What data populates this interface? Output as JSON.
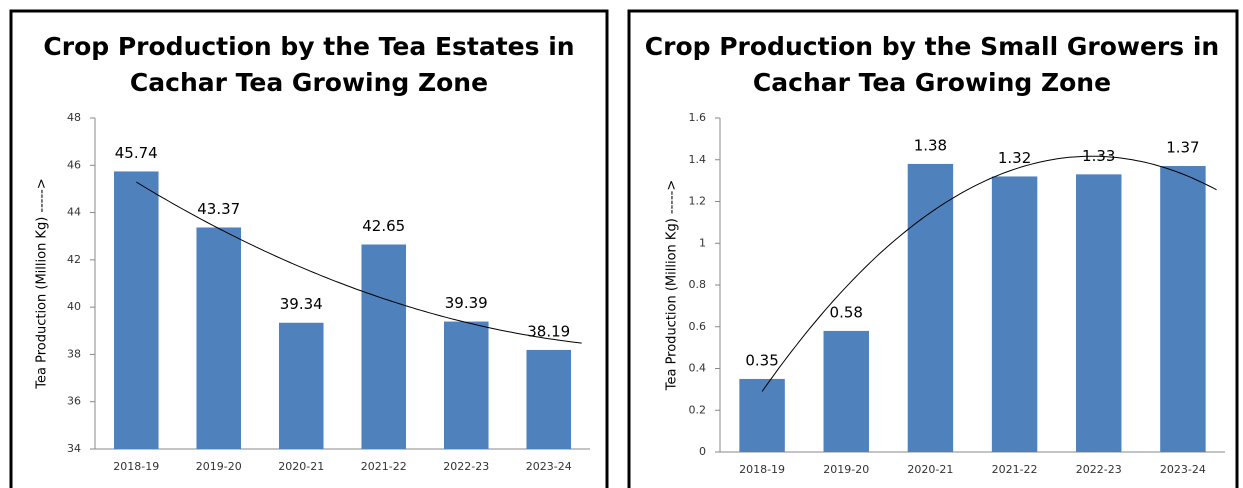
{
  "chart_data": [
    {
      "type": "bar",
      "title": [
        "Crop Production by the Tea Estates in",
        "Cachar Tea Growing Zone"
      ],
      "y_label": "Tea Production (Million Kg) ----->",
      "categories": [
        "2018-19",
        "2019-20",
        "2020-21",
        "2021-22",
        "2022-23",
        "2023-24"
      ],
      "values": [
        45.74,
        43.37,
        39.34,
        42.65,
        39.39,
        38.19
      ],
      "color": "#4f81bd",
      "ylim": [
        34,
        48
      ],
      "yticks": [
        34,
        36,
        38,
        40,
        42,
        44,
        46,
        48
      ],
      "trendline": "polynomial"
    },
    {
      "type": "bar",
      "title": [
        "Crop Production by the Small Growers in",
        "Cachar Tea Growing Zone"
      ],
      "y_label": "Tea Production (Million Kg) ----->",
      "categories": [
        "2018-19",
        "2019-20",
        "2020-21",
        "2021-22",
        "2022-23",
        "2023-24"
      ],
      "values": [
        0.35,
        0.58,
        1.38,
        1.32,
        1.33,
        1.37
      ],
      "color": "#4f81bd",
      "ylim": [
        0,
        1.6
      ],
      "yticks": [
        0,
        0.2,
        0.4,
        0.6,
        0.8,
        1,
        1.2,
        1.4,
        1.6
      ],
      "trendline": "polynomial"
    }
  ]
}
